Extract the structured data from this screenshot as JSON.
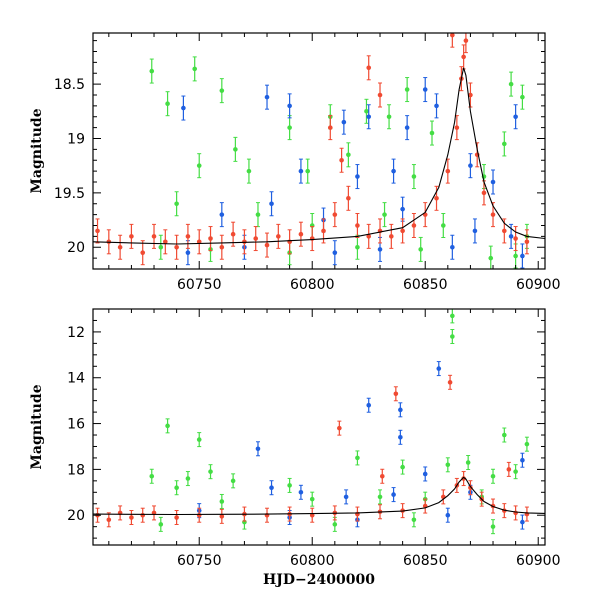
{
  "chart_data": [
    {
      "type": "scatter",
      "panel": "top",
      "xlabel": "",
      "ylabel": "Magnitude",
      "xlim": [
        60703,
        60903
      ],
      "ylim": [
        20.2,
        18.03
      ],
      "y_inverted": true,
      "x_ticks": [
        60750,
        60800,
        60850,
        60900
      ],
      "y_ticks": [
        18.5,
        19,
        19.5,
        20
      ],
      "y_tick_labels": [
        "18.5",
        "19",
        "19.5",
        "20"
      ],
      "grid": false,
      "legend": "none",
      "model_curve_color": "#000000",
      "series": [
        {
          "color": "#44dd44",
          "points": [
            [
              60729,
              18.38
            ],
            [
              60736,
              18.68
            ],
            [
              60748,
              18.36
            ],
            [
              60760,
              18.56
            ],
            [
              60790,
              18.9
            ],
            [
              60808,
              18.8
            ],
            [
              60824,
              18.75
            ],
            [
              60834,
              18.8
            ],
            [
              60842,
              18.55
            ],
            [
              60853,
              18.95
            ],
            [
              60888,
              18.5
            ],
            [
              60893,
              18.62
            ],
            [
              60750,
              19.25
            ],
            [
              60766,
              19.1
            ],
            [
              60772,
              19.3
            ],
            [
              60798,
              19.3
            ],
            [
              60816,
              19.15
            ],
            [
              60845,
              19.35
            ],
            [
              60876,
              19.35
            ],
            [
              60885,
              19.05
            ],
            [
              60740,
              19.6
            ],
            [
              60776,
              19.7
            ],
            [
              60800,
              19.8
            ],
            [
              60832,
              19.7
            ],
            [
              60858,
              19.8
            ],
            [
              60895,
              19.9
            ],
            [
              60733,
              20.0
            ],
            [
              60755,
              20.02
            ],
            [
              60790,
              20.05
            ],
            [
              60820,
              20.0
            ],
            [
              60848,
              20.02
            ],
            [
              60879,
              20.1
            ],
            [
              60890,
              20.08
            ]
          ]
        },
        {
          "color": "#1f5fe0",
          "points": [
            [
              60743,
              18.72
            ],
            [
              60780,
              18.62
            ],
            [
              60790,
              18.7
            ],
            [
              60814,
              18.85
            ],
            [
              60825,
              18.8
            ],
            [
              60842,
              18.9
            ],
            [
              60850,
              18.55
            ],
            [
              60855,
              18.7
            ],
            [
              60890,
              18.8
            ],
            [
              60795,
              19.3
            ],
            [
              60820,
              19.35
            ],
            [
              60836,
              19.3
            ],
            [
              60870,
              19.25
            ],
            [
              60880,
              19.4
            ],
            [
              60760,
              19.7
            ],
            [
              60782,
              19.6
            ],
            [
              60805,
              19.75
            ],
            [
              60840,
              19.65
            ],
            [
              60872,
              19.85
            ],
            [
              60888,
              19.9
            ],
            [
              60745,
              20.05
            ],
            [
              60770,
              20.0
            ],
            [
              60810,
              20.05
            ],
            [
              60830,
              20.02
            ],
            [
              60862,
              20.0
            ],
            [
              60893,
              20.08
            ]
          ]
        },
        {
          "color": "#f04a32",
          "points": [
            [
              60705,
              19.85
            ],
            [
              60710,
              19.95
            ],
            [
              60715,
              20.0
            ],
            [
              60720,
              19.9
            ],
            [
              60725,
              20.05
            ],
            [
              60730,
              19.9
            ],
            [
              60735,
              19.95
            ],
            [
              60740,
              20.0
            ],
            [
              60745,
              19.9
            ],
            [
              60750,
              19.95
            ],
            [
              60755,
              19.92
            ],
            [
              60760,
              20.0
            ],
            [
              60765,
              19.88
            ],
            [
              60770,
              19.95
            ],
            [
              60775,
              19.92
            ],
            [
              60780,
              19.98
            ],
            [
              60785,
              19.9
            ],
            [
              60790,
              19.95
            ],
            [
              60795,
              19.88
            ],
            [
              60800,
              19.92
            ],
            [
              60805,
              19.85
            ],
            [
              60810,
              19.7
            ],
            [
              60813,
              19.2
            ],
            [
              60816,
              19.55
            ],
            [
              60820,
              19.8
            ],
            [
              60825,
              19.9
            ],
            [
              60830,
              19.85
            ],
            [
              60835,
              19.9
            ],
            [
              60840,
              19.85
            ],
            [
              60845,
              19.8
            ],
            [
              60850,
              19.7
            ],
            [
              60855,
              19.55
            ],
            [
              60860,
              19.3
            ],
            [
              60864,
              18.9
            ],
            [
              60866,
              18.45
            ],
            [
              60867,
              18.25
            ],
            [
              60868,
              18.1
            ],
            [
              60870,
              18.6
            ],
            [
              60873,
              19.15
            ],
            [
              60876,
              19.5
            ],
            [
              60880,
              19.7
            ],
            [
              60885,
              19.85
            ],
            [
              60890,
              19.92
            ],
            [
              60895,
              19.95
            ],
            [
              60862,
              18.05
            ],
            [
              60825,
              18.35
            ],
            [
              60830,
              18.6
            ],
            [
              60808,
              18.9
            ]
          ]
        }
      ],
      "model_curve": {
        "x": [
          60703,
          60720,
          60740,
          60760,
          60780,
          60800,
          60820,
          60840,
          60850,
          60856,
          60860,
          60863,
          60865,
          60867,
          60868,
          60870,
          60873,
          60876,
          60880,
          60885,
          60890,
          60895,
          60903
        ],
        "y": [
          19.95,
          19.96,
          19.97,
          19.96,
          19.95,
          19.93,
          19.9,
          19.82,
          19.68,
          19.45,
          19.15,
          18.85,
          18.55,
          18.35,
          18.42,
          18.75,
          19.1,
          19.4,
          19.62,
          19.78,
          19.86,
          19.9,
          19.92
        ]
      }
    },
    {
      "type": "scatter",
      "panel": "bottom",
      "xlabel": "HJD−2400000",
      "ylabel": "Magnitude",
      "xlim": [
        60703,
        60903
      ],
      "ylim": [
        21.3,
        11.0
      ],
      "y_inverted": true,
      "x_ticks": [
        60750,
        60800,
        60850,
        60900
      ],
      "y_ticks": [
        12,
        14,
        16,
        18,
        20
      ],
      "grid": false,
      "legend": "none",
      "model_curve_color": "#000000",
      "series": [
        {
          "color": "#44dd44",
          "points": [
            [
              60862,
              11.3
            ],
            [
              60862,
              12.2
            ],
            [
              60736,
              16.1
            ],
            [
              60750,
              16.7
            ],
            [
              60885,
              16.5
            ],
            [
              60895,
              16.9
            ],
            [
              60729,
              18.3
            ],
            [
              60740,
              18.8
            ],
            [
              60745,
              18.4
            ],
            [
              60755,
              18.1
            ],
            [
              60765,
              18.5
            ],
            [
              60790,
              18.7
            ],
            [
              60820,
              17.5
            ],
            [
              60840,
              17.9
            ],
            [
              60860,
              17.8
            ],
            [
              60869,
              17.7
            ],
            [
              60880,
              18.3
            ],
            [
              60890,
              18.1
            ],
            [
              60760,
              19.4
            ],
            [
              60800,
              19.3
            ],
            [
              60830,
              19.2
            ],
            [
              60850,
              19.3
            ],
            [
              60875,
              19.2
            ],
            [
              60733,
              20.4
            ],
            [
              60770,
              20.3
            ],
            [
              60810,
              20.4
            ],
            [
              60845,
              20.2
            ],
            [
              60880,
              20.5
            ]
          ]
        },
        {
          "color": "#1f5fe0",
          "points": [
            [
              60856,
              13.6
            ],
            [
              60839,
              15.4
            ],
            [
              60825,
              15.2
            ],
            [
              60839,
              16.6
            ],
            [
              60776,
              17.1
            ],
            [
              60850,
              18.2
            ],
            [
              60893,
              17.6
            ],
            [
              60782,
              18.8
            ],
            [
              60795,
              19.0
            ],
            [
              60815,
              19.2
            ],
            [
              60836,
              19.1
            ],
            [
              60870,
              19.0
            ],
            [
              60750,
              19.8
            ],
            [
              60790,
              20.1
            ],
            [
              60820,
              20.2
            ],
            [
              60860,
              20.0
            ],
            [
              60893,
              20.3
            ]
          ]
        },
        {
          "color": "#f04a32",
          "points": [
            [
              60861,
              14.2
            ],
            [
              60837,
              14.7
            ],
            [
              60812,
              16.2
            ],
            [
              60887,
              18.0
            ],
            [
              60831,
              18.3
            ],
            [
              60705,
              20.0
            ],
            [
              60710,
              20.2
            ],
            [
              60715,
              19.9
            ],
            [
              60720,
              20.1
            ],
            [
              60725,
              20.0
            ],
            [
              60730,
              19.9
            ],
            [
              60740,
              20.1
            ],
            [
              60750,
              20.0
            ],
            [
              60760,
              20.05
            ],
            [
              60770,
              19.95
            ],
            [
              60780,
              20.0
            ],
            [
              60790,
              19.95
            ],
            [
              60800,
              20.0
            ],
            [
              60810,
              19.9
            ],
            [
              60820,
              19.95
            ],
            [
              60830,
              19.85
            ],
            [
              60840,
              19.8
            ],
            [
              60850,
              19.6
            ],
            [
              60858,
              19.2
            ],
            [
              60864,
              18.7
            ],
            [
              60867,
              18.4
            ],
            [
              60870,
              18.8
            ],
            [
              60875,
              19.3
            ],
            [
              60880,
              19.6
            ],
            [
              60885,
              19.8
            ],
            [
              60890,
              19.9
            ],
            [
              60895,
              19.95
            ]
          ]
        }
      ],
      "model_curve": {
        "x": [
          60703,
          60720,
          60740,
          60760,
          60780,
          60800,
          60820,
          60840,
          60850,
          60856,
          60860,
          60863,
          60865,
          60867,
          60868,
          60870,
          60873,
          60876,
          60880,
          60885,
          60890,
          60895,
          60903
        ],
        "y": [
          19.95,
          19.96,
          19.97,
          19.96,
          19.95,
          19.93,
          19.9,
          19.82,
          19.68,
          19.45,
          19.15,
          18.85,
          18.55,
          18.35,
          18.42,
          18.75,
          19.1,
          19.4,
          19.62,
          19.78,
          19.86,
          19.9,
          19.92
        ]
      }
    }
  ]
}
